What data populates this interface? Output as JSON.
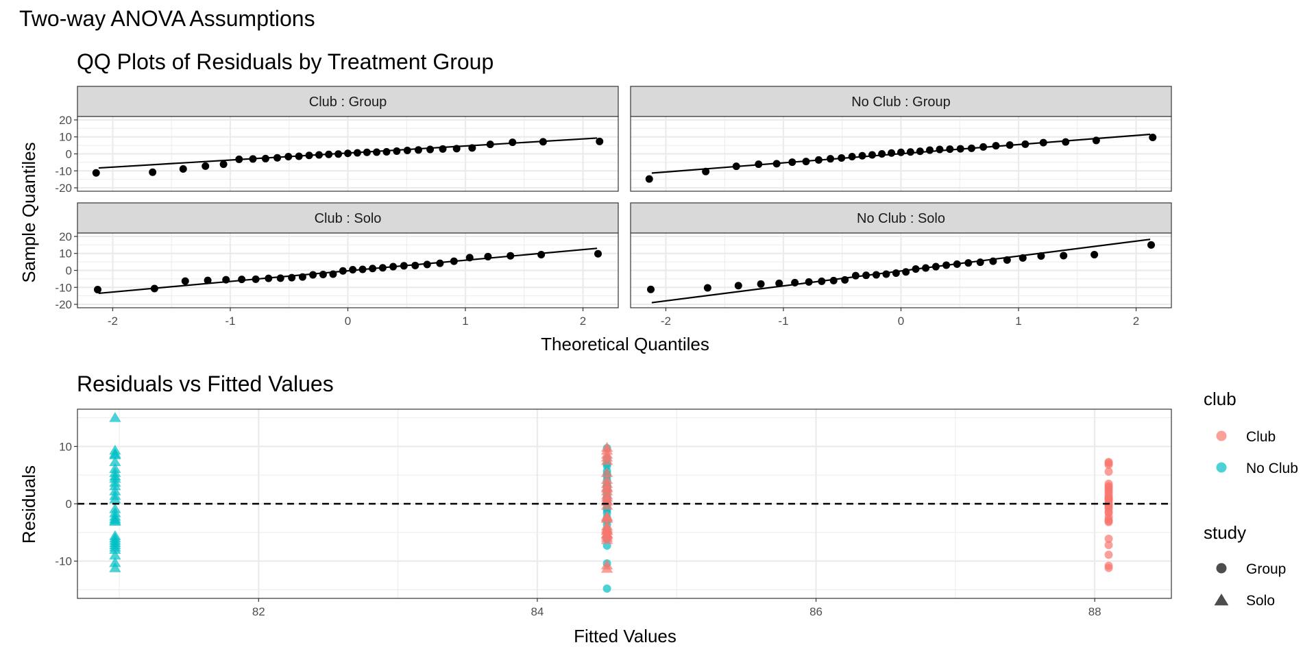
{
  "title": "Two-way ANOVA Assumptions",
  "colors": {
    "club": "#F8766D",
    "no_club": "#00BFC4",
    "points": "#000000",
    "strip": "#D9D9D9",
    "grid": "#EBEBEB"
  },
  "chart_data": [
    {
      "type": "scatter",
      "subtype": "qq-facets",
      "title": "QQ Plots of Residuals by Treatment Group",
      "xlabel": "Theoretical Quantiles",
      "ylabel": "Sample Quantiles",
      "xlim": [
        -2.3,
        2.3
      ],
      "ylim": [
        -22,
        22
      ],
      "xticks": [
        "-2",
        "-1",
        "0",
        "1",
        "2"
      ],
      "yticks": [
        "20",
        "10",
        "0",
        "-10",
        "-20"
      ],
      "panels": [
        {
          "label": "Club : Group",
          "line": [
            [
              -2.12,
              -8.3
            ],
            [
              2.12,
              9.3
            ]
          ],
          "y": [
            -11.2,
            -10.8,
            -8.9,
            -7.2,
            -6.1,
            -3.2,
            -3.0,
            -2.8,
            -2.3,
            -1.6,
            -1.4,
            -0.9,
            -0.6,
            -0.3,
            -0.1,
            0.3,
            0.6,
            0.9,
            1.0,
            1.2,
            1.6,
            2.0,
            2.3,
            2.6,
            2.9,
            3.1,
            3.5,
            5.6,
            6.8,
            7.1,
            7.3
          ]
        },
        {
          "label": "No Club : Group",
          "line": [
            [
              -2.12,
              -11.3
            ],
            [
              2.12,
              11.5
            ]
          ],
          "y": [
            -14.8,
            -10.4,
            -7.3,
            -6.1,
            -5.8,
            -4.9,
            -4.5,
            -3.6,
            -2.9,
            -2.4,
            -1.6,
            -1.1,
            -0.6,
            0.0,
            0.5,
            0.9,
            1.1,
            1.5,
            2.2,
            2.6,
            2.8,
            3.0,
            3.3,
            4.1,
            4.8,
            5.2,
            5.7,
            6.6,
            7.0,
            7.9,
            9.7
          ]
        },
        {
          "label": "Club : Solo",
          "line": [
            [
              -2.12,
              -13.5
            ],
            [
              2.12,
              13.0
            ]
          ],
          "y": [
            -11.3,
            -10.7,
            -6.3,
            -5.9,
            -5.5,
            -5.3,
            -5.2,
            -4.7,
            -4.6,
            -4.3,
            -3.9,
            -2.6,
            -2.4,
            -2.2,
            -0.3,
            0.4,
            0.6,
            1.1,
            1.5,
            2.2,
            2.7,
            2.9,
            3.5,
            4.2,
            5.4,
            7.5,
            8.1,
            8.6,
            9.3,
            9.8
          ]
        },
        {
          "label": "No Club : Solo",
          "line": [
            [
              -2.12,
              -19.0
            ],
            [
              2.12,
              18.3
            ]
          ],
          "y": [
            -11.2,
            -10.3,
            -9.0,
            -8.0,
            -7.6,
            -7.2,
            -6.8,
            -6.4,
            -6.0,
            -5.6,
            -3.1,
            -2.9,
            -2.6,
            -2.2,
            -1.6,
            -0.9,
            0.8,
            1.4,
            2.2,
            3.1,
            3.7,
            4.4,
            4.8,
            5.4,
            6.1,
            7.3,
            8.5,
            8.7,
            9.3,
            15.0
          ]
        }
      ]
    },
    {
      "type": "scatter",
      "title": "Residuals vs Fitted Values",
      "xlabel": "Fitted Values",
      "ylabel": "Residuals",
      "xlim": [
        80.7,
        88.55
      ],
      "ylim": [
        -16.5,
        16.5
      ],
      "xticks": [
        "82",
        "84",
        "86",
        "88"
      ],
      "yticks": [
        "10",
        "0",
        "-10"
      ],
      "reference_line": {
        "y": 0,
        "style": "dashed"
      },
      "series": [
        {
          "name": "Club / Group",
          "club": "Club",
          "study": "Group",
          "x": 88.1,
          "y": [
            -11.2,
            -10.8,
            -8.9,
            -7.2,
            -6.1,
            -3.2,
            -3.0,
            -2.8,
            -2.3,
            -1.6,
            -1.4,
            -0.9,
            -0.6,
            -0.3,
            -0.1,
            0.3,
            0.6,
            0.9,
            1.0,
            1.2,
            1.6,
            2.0,
            2.3,
            2.6,
            2.9,
            3.1,
            3.5,
            5.6,
            6.8,
            7.1,
            7.3
          ]
        },
        {
          "name": "No Club / Group",
          "club": "No Club",
          "study": "Group",
          "x": 84.5,
          "y": [
            -14.8,
            -10.4,
            -7.3,
            -6.1,
            -5.8,
            -4.9,
            -4.5,
            -3.6,
            -2.9,
            -2.4,
            -1.6,
            -1.1,
            -0.6,
            0.0,
            0.5,
            0.9,
            1.1,
            1.5,
            2.2,
            2.6,
            2.8,
            3.0,
            3.3,
            4.1,
            4.8,
            5.2,
            5.7,
            6.6,
            7.0,
            7.9,
            9.7
          ]
        },
        {
          "name": "Club / Solo",
          "club": "Club",
          "study": "Solo",
          "x": 84.5,
          "y": [
            -11.3,
            -10.7,
            -6.3,
            -5.9,
            -5.5,
            -5.3,
            -5.2,
            -4.7,
            -4.6,
            -4.3,
            -3.9,
            -2.6,
            -2.4,
            -2.2,
            -0.3,
            0.4,
            0.6,
            1.1,
            1.5,
            2.2,
            2.7,
            2.9,
            3.5,
            4.2,
            5.4,
            7.5,
            8.1,
            8.6,
            9.3,
            9.8
          ]
        },
        {
          "name": "No Club / Solo",
          "club": "No Club",
          "study": "Solo",
          "x": 80.97,
          "y": [
            -11.2,
            -10.3,
            -9.0,
            -8.0,
            -7.6,
            -7.2,
            -6.8,
            -6.4,
            -6.0,
            -5.6,
            -3.1,
            -2.9,
            -2.6,
            -2.2,
            -1.6,
            -0.9,
            0.8,
            1.4,
            2.2,
            3.1,
            3.7,
            4.4,
            4.8,
            5.4,
            6.1,
            7.3,
            8.5,
            8.7,
            9.3,
            15.0
          ]
        }
      ],
      "legend": {
        "position": "right",
        "club": {
          "title": "club",
          "items": [
            "Club",
            "No Club"
          ]
        },
        "study": {
          "title": "study",
          "items": [
            "Group",
            "Solo"
          ]
        }
      }
    }
  ]
}
